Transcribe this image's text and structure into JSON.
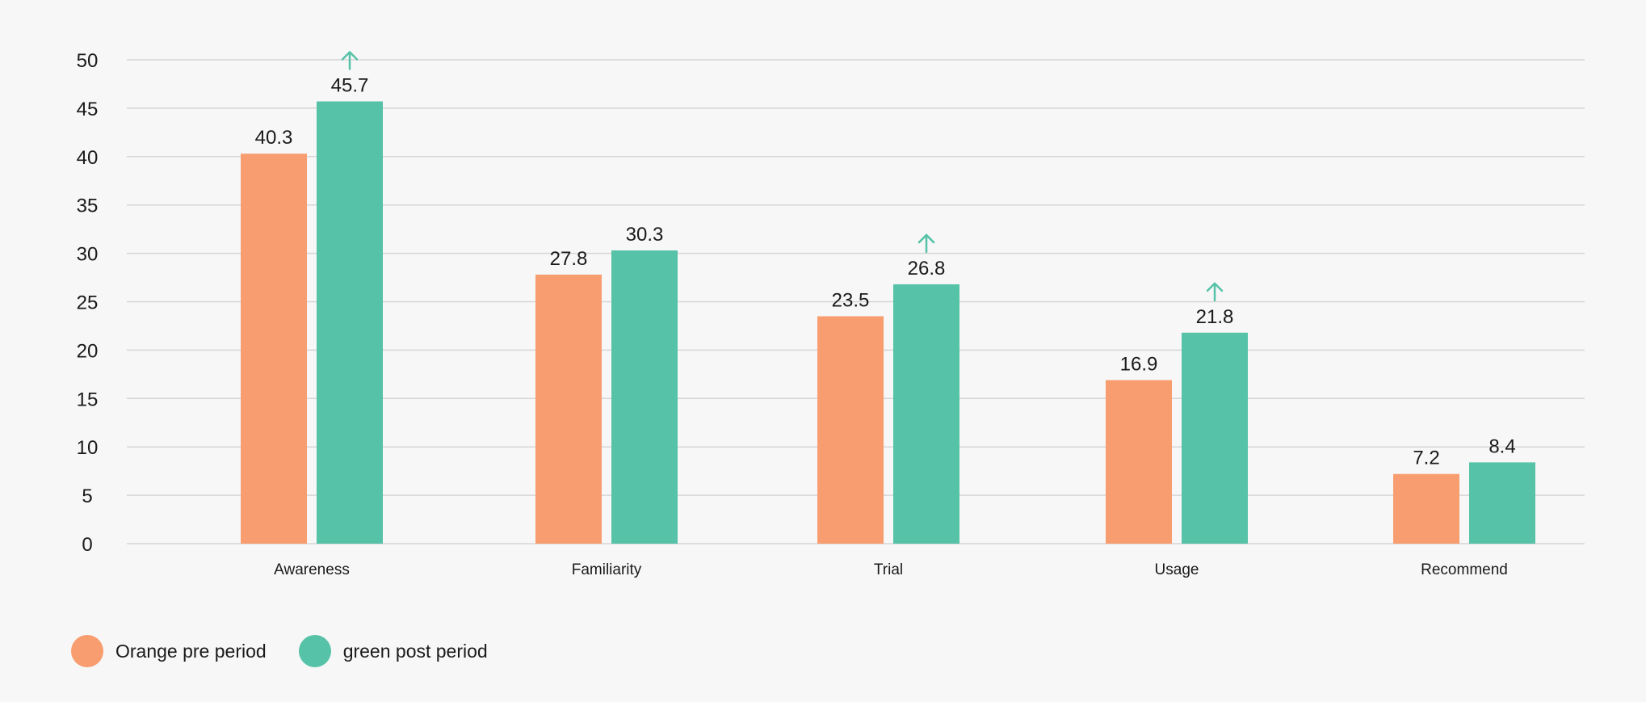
{
  "chart_data": {
    "type": "bar",
    "title": "",
    "xlabel": "",
    "ylabel": "",
    "categories": [
      "Awareness",
      "Familiarity",
      "Trial",
      "Usage",
      "Recommend"
    ],
    "ylim": [
      0,
      50
    ],
    "yticks": [
      0,
      5,
      10,
      15,
      20,
      25,
      30,
      35,
      40,
      45,
      50
    ],
    "grid": true,
    "legend_position": "bottom-left",
    "series": [
      {
        "name": "Orange pre period",
        "color": "#f89d70",
        "values": [
          40.3,
          27.8,
          23.5,
          16.9,
          7.2
        ],
        "labels": [
          "40.3",
          "27.8",
          "23.5",
          "16.9",
          "7.2"
        ]
      },
      {
        "name": "green post period",
        "color": "#56c2a7",
        "values": [
          45.7,
          30.3,
          26.8,
          21.8,
          8.4
        ],
        "labels": [
          "45.7",
          "30.3",
          "26.8",
          "21.8",
          "8.4"
        ],
        "increase_arrows": [
          true,
          false,
          true,
          true,
          false
        ]
      }
    ],
    "annotations": {
      "arrow_color": "#56c2a7",
      "arrow_meaning": "up-arrow-icon"
    }
  }
}
